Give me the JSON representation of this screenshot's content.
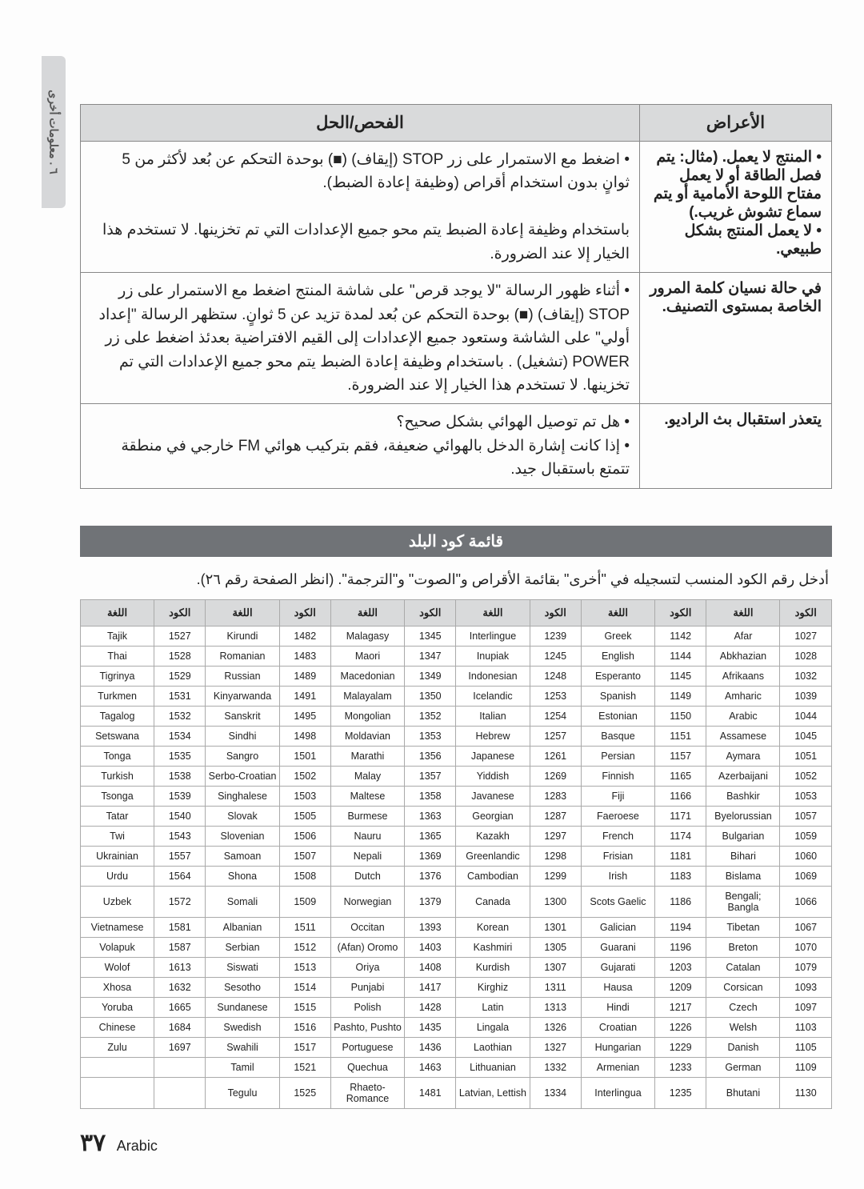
{
  "margin_tab": "٦ . معلومات أخرى",
  "tshoot": {
    "headers": {
      "symptom": "الأعراض",
      "fix": "الفحص/الحل"
    },
    "rows": [
      {
        "sym": "• المنتج لا يعمل. (مثال: يتم فصل الطاقة أو لا يعمل مفتاح اللوحة الأمامية أو يتم سماع تشوش غريب.)\n• لا يعمل المنتج بشكل طبيعي.",
        "fix": "• اضغط مع الاستمرار على زر STOP (إيقاف) (■) بوحدة التحكم عن بُعد لأكثر من 5 ثوانٍ بدون استخدام أقراص (وظيفة إعادة الضبط).\n\nباستخدام وظيفة إعادة الضبط يتم محو جميع الإعدادات التي تم تخزينها. لا تستخدم هذا الخيار إلا عند الضرورة."
      },
      {
        "sym": "في حالة نسيان كلمة المرور الخاصة بمستوى التصنيف.",
        "fix": "• أثناء ظهور الرسالة \"لا يوجد قرص\" على شاشة المنتج اضغط مع الاستمرار على زر STOP (إيقاف) (■) بوحدة التحكم عن بُعد لمدة تزيد عن 5 ثوانٍ. ستظهر الرسالة \"إعداد أولي\" على الشاشة وستعود جميع الإعدادات إلى القيم الافتراضية بعدئذ اضغط على زر POWER (تشغيل) . باستخدام وظيفة إعادة الضبط يتم محو جميع الإعدادات التي تم تخزينها. لا تستخدم هذا الخيار إلا عند الضرورة."
      },
      {
        "sym": "يتعذر استقبال بث الراديو.",
        "fix": "• هل تم توصيل الهوائي بشكل صحيح؟\n• إذا كانت إشارة الدخل بالهوائي ضعيفة، فقم بتركيب هوائي FM خارجي في منطقة تتمتع باستقبال جيد."
      }
    ]
  },
  "section_title": "قائمة كود البلد",
  "intro": "أدخل رقم الكود المنسب لتسجيله في \"أخرى\" بقائمة الأقراص و\"الصوت\" و\"الترجمة\". (انظر الصفحة رقم ٢٦).",
  "code_headers": {
    "lang": "اللغة",
    "code": "الكود"
  },
  "codes": [
    [
      "Tajik",
      "1527",
      "Kirundi",
      "1482",
      "Malagasy",
      "1345",
      "Interlingue",
      "1239",
      "Greek",
      "1142",
      "Afar",
      "1027"
    ],
    [
      "Thai",
      "1528",
      "Romanian",
      "1483",
      "Maori",
      "1347",
      "Inupiak",
      "1245",
      "English",
      "1144",
      "Abkhazian",
      "1028"
    ],
    [
      "Tigrinya",
      "1529",
      "Russian",
      "1489",
      "Macedonian",
      "1349",
      "Indonesian",
      "1248",
      "Esperanto",
      "1145",
      "Afrikaans",
      "1032"
    ],
    [
      "Turkmen",
      "1531",
      "Kinyarwanda",
      "1491",
      "Malayalam",
      "1350",
      "Icelandic",
      "1253",
      "Spanish",
      "1149",
      "Amharic",
      "1039"
    ],
    [
      "Tagalog",
      "1532",
      "Sanskrit",
      "1495",
      "Mongolian",
      "1352",
      "Italian",
      "1254",
      "Estonian",
      "1150",
      "Arabic",
      "1044"
    ],
    [
      "Setswana",
      "1534",
      "Sindhi",
      "1498",
      "Moldavian",
      "1353",
      "Hebrew",
      "1257",
      "Basque",
      "1151",
      "Assamese",
      "1045"
    ],
    [
      "Tonga",
      "1535",
      "Sangro",
      "1501",
      "Marathi",
      "1356",
      "Japanese",
      "1261",
      "Persian",
      "1157",
      "Aymara",
      "1051"
    ],
    [
      "Turkish",
      "1538",
      "Serbo-Croatian",
      "1502",
      "Malay",
      "1357",
      "Yiddish",
      "1269",
      "Finnish",
      "1165",
      "Azerbaijani",
      "1052"
    ],
    [
      "Tsonga",
      "1539",
      "Singhalese",
      "1503",
      "Maltese",
      "1358",
      "Javanese",
      "1283",
      "Fiji",
      "1166",
      "Bashkir",
      "1053"
    ],
    [
      "Tatar",
      "1540",
      "Slovak",
      "1505",
      "Burmese",
      "1363",
      "Georgian",
      "1287",
      "Faeroese",
      "1171",
      "Byelorussian",
      "1057"
    ],
    [
      "Twi",
      "1543",
      "Slovenian",
      "1506",
      "Nauru",
      "1365",
      "Kazakh",
      "1297",
      "French",
      "1174",
      "Bulgarian",
      "1059"
    ],
    [
      "Ukrainian",
      "1557",
      "Samoan",
      "1507",
      "Nepali",
      "1369",
      "Greenlandic",
      "1298",
      "Frisian",
      "1181",
      "Bihari",
      "1060"
    ],
    [
      "Urdu",
      "1564",
      "Shona",
      "1508",
      "Dutch",
      "1376",
      "Cambodian",
      "1299",
      "Irish",
      "1183",
      "Bislama",
      "1069"
    ],
    [
      "Uzbek",
      "1572",
      "Somali",
      "1509",
      "Norwegian",
      "1379",
      "Canada",
      "1300",
      "Scots Gaelic",
      "1186",
      "Bengali; Bangla",
      "1066"
    ],
    [
      "Vietnamese",
      "1581",
      "Albanian",
      "1511",
      "Occitan",
      "1393",
      "Korean",
      "1301",
      "Galician",
      "1194",
      "Tibetan",
      "1067"
    ],
    [
      "Volapuk",
      "1587",
      "Serbian",
      "1512",
      "(Afan) Oromo",
      "1403",
      "Kashmiri",
      "1305",
      "Guarani",
      "1196",
      "Breton",
      "1070"
    ],
    [
      "Wolof",
      "1613",
      "Siswati",
      "1513",
      "Oriya",
      "1408",
      "Kurdish",
      "1307",
      "Gujarati",
      "1203",
      "Catalan",
      "1079"
    ],
    [
      "Xhosa",
      "1632",
      "Sesotho",
      "1514",
      "Punjabi",
      "1417",
      "Kirghiz",
      "1311",
      "Hausa",
      "1209",
      "Corsican",
      "1093"
    ],
    [
      "Yoruba",
      "1665",
      "Sundanese",
      "1515",
      "Polish",
      "1428",
      "Latin",
      "1313",
      "Hindi",
      "1217",
      "Czech",
      "1097"
    ],
    [
      "Chinese",
      "1684",
      "Swedish",
      "1516",
      "Pashto, Pushto",
      "1435",
      "Lingala",
      "1326",
      "Croatian",
      "1226",
      "Welsh",
      "1103"
    ],
    [
      "Zulu",
      "1697",
      "Swahili",
      "1517",
      "Portuguese",
      "1436",
      "Laothian",
      "1327",
      "Hungarian",
      "1229",
      "Danish",
      "1105"
    ],
    [
      "",
      "",
      "Tamil",
      "1521",
      "Quechua",
      "1463",
      "Lithuanian",
      "1332",
      "Armenian",
      "1233",
      "German",
      "1109"
    ],
    [
      "",
      "",
      "Tegulu",
      "1525",
      "Rhaeto-Romance",
      "1481",
      "Latvian, Lettish",
      "1334",
      "Interlingua",
      "1235",
      "Bhutani",
      "1130"
    ]
  ],
  "footer": {
    "page": "٣٧",
    "label": "Arabic"
  }
}
